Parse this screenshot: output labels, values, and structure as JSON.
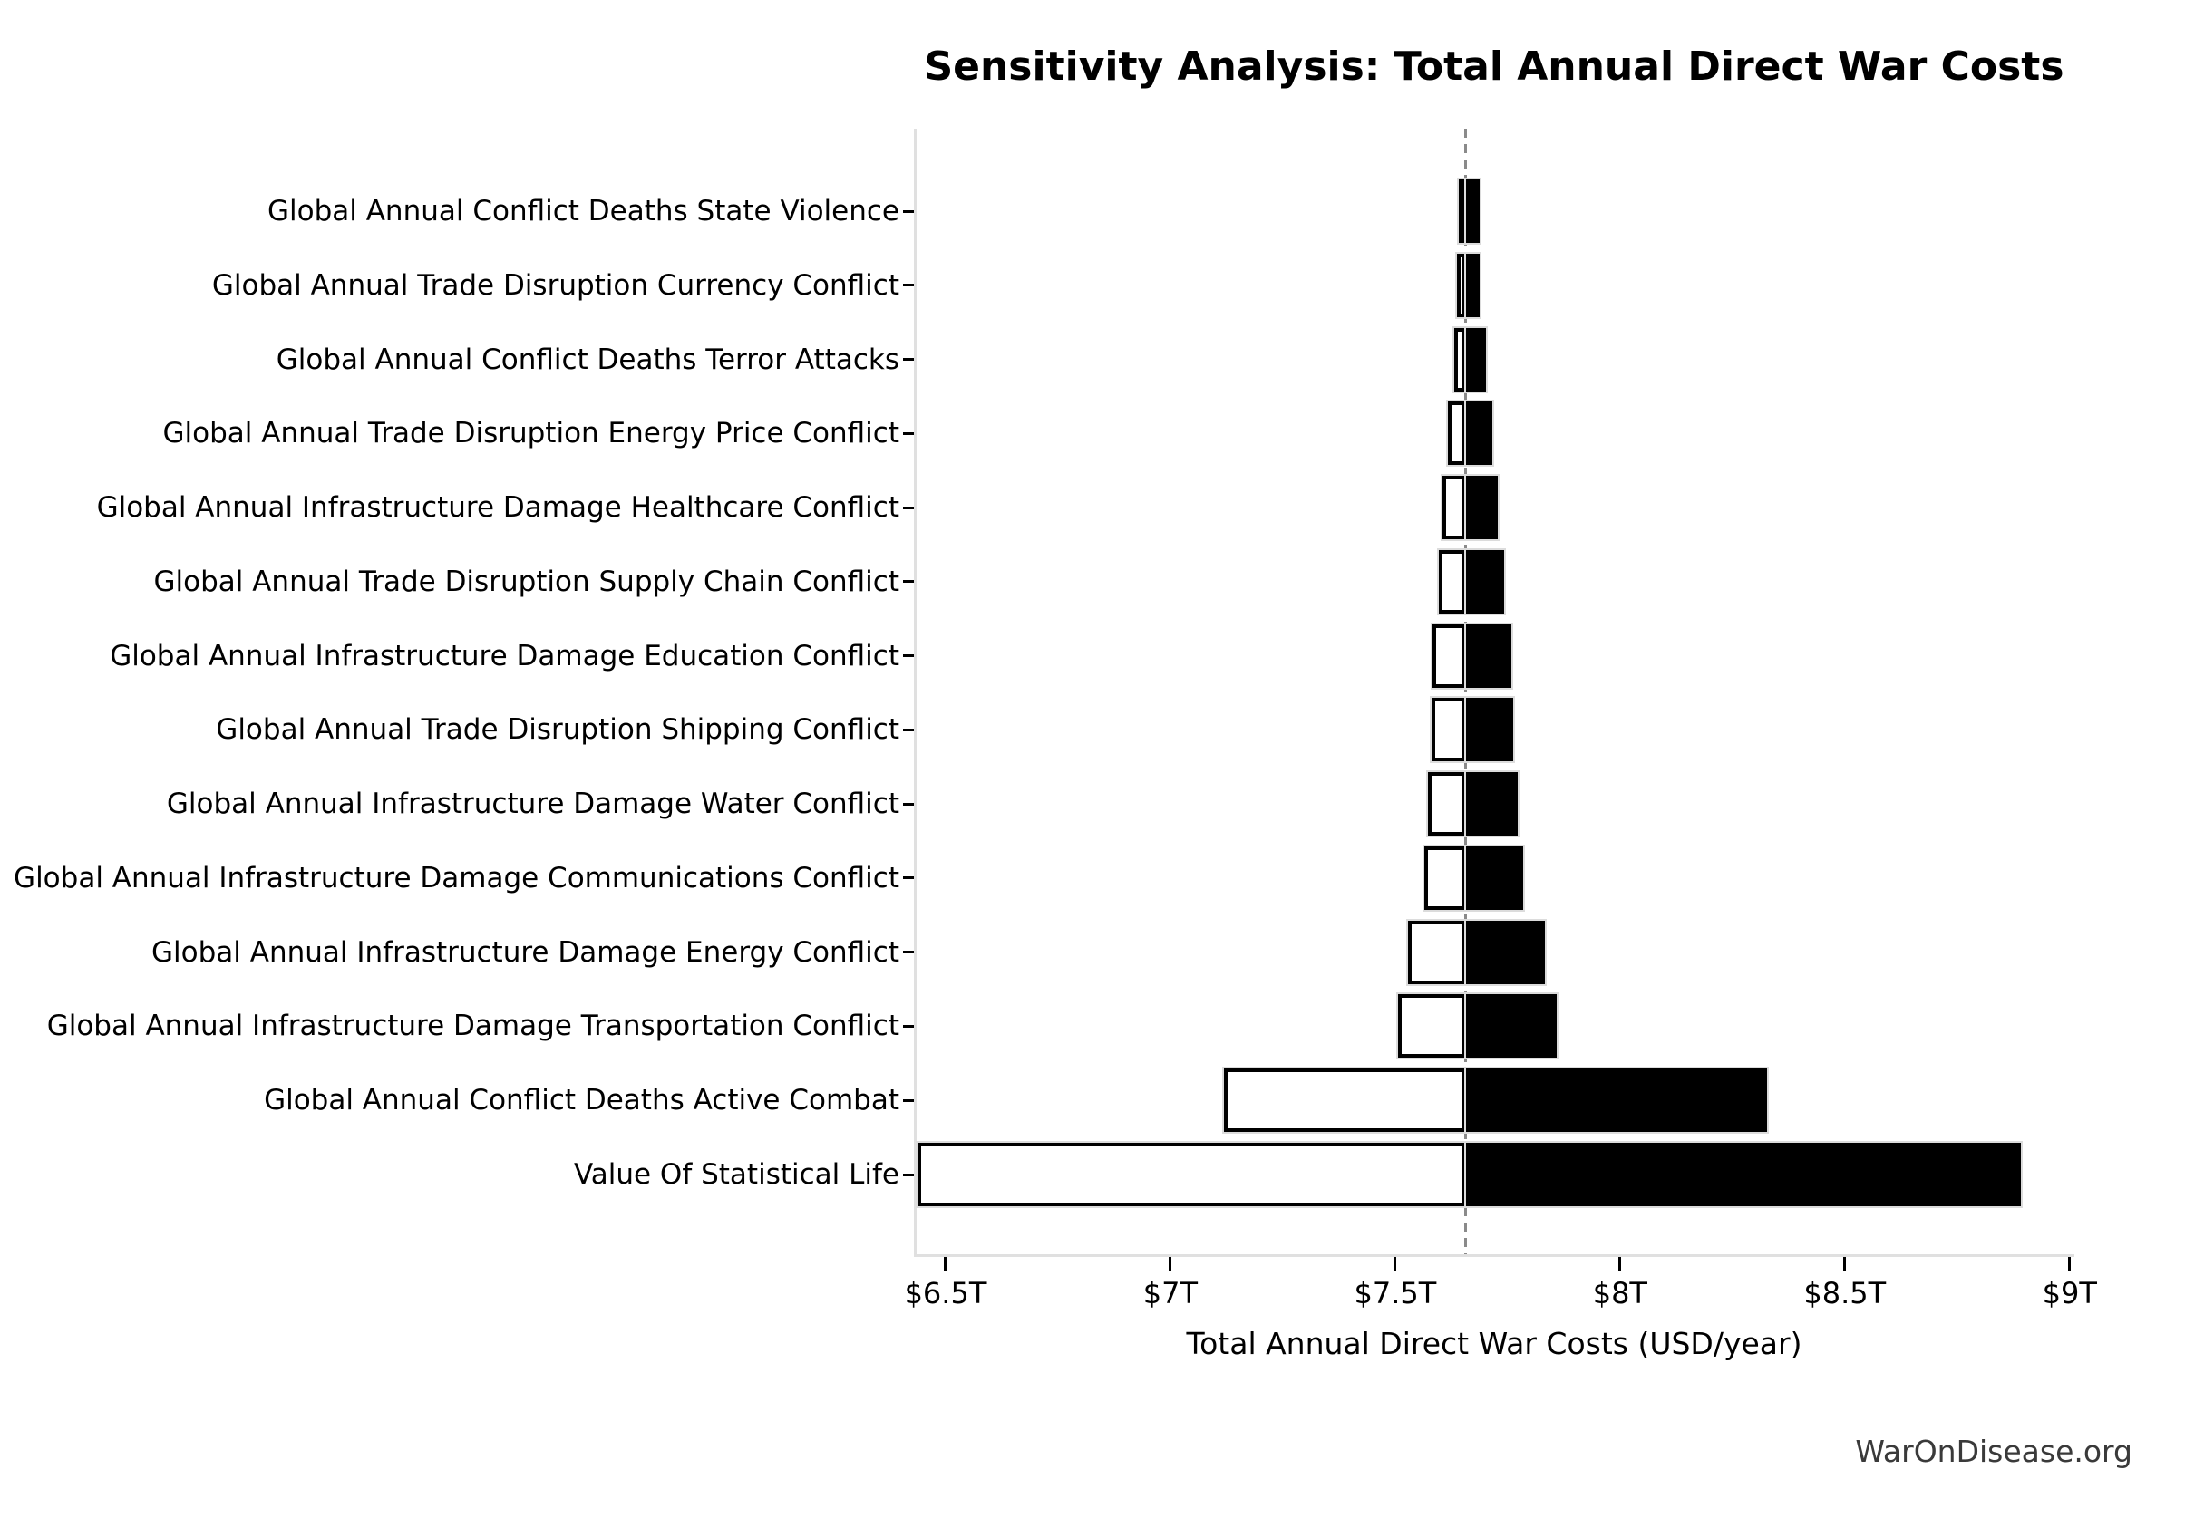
{
  "chart": {
    "title": "Sensitivity Analysis: Total Annual Direct War Costs",
    "xlabel": "Total Annual Direct War Costs (USD/year)",
    "watermark": "WarOnDisease.org"
  },
  "colors": {
    "background": "#ffffff",
    "bar_low_fill": "#ffffff",
    "bar_low_edge": "#000000",
    "bar_high_fill": "#000000",
    "baseline_line": "#8a8a8a",
    "spine": "#e0e0e0",
    "tick_mark": "#000000",
    "text": "#000000",
    "watermark_text": "#3a3a3a"
  },
  "chart_data": {
    "type": "bar",
    "subtype": "tornado-sensitivity",
    "orientation": "horizontal",
    "title": "Sensitivity Analysis: Total Annual Direct War Costs",
    "xlabel": "Total Annual Direct War Costs (USD/year)",
    "ylabel": "",
    "unit": "trillion USD per year",
    "grid": false,
    "legend": null,
    "baseline_value": 7.657,
    "baseline_line_style": "dashed-gray-vertical",
    "xlim": [
      6.4335,
      9.0065
    ],
    "x_ticks": [
      {
        "value": 6.5,
        "label": "$6.5T"
      },
      {
        "value": 7.0,
        "label": "$7T"
      },
      {
        "value": 7.5,
        "label": "$7.5T"
      },
      {
        "value": 8.0,
        "label": "$8T"
      },
      {
        "value": 8.5,
        "label": "$8.5T"
      },
      {
        "value": 9.0,
        "label": "$9T"
      }
    ],
    "categories": [
      "Global Annual Conflict Deaths State Violence",
      "Global Annual Trade Disruption Currency Conflict",
      "Global Annual Conflict Deaths Terror Attacks",
      "Global Annual Trade Disruption Energy Price Conflict",
      "Global Annual Infrastructure Damage Healthcare Conflict",
      "Global Annual Trade Disruption Supply Chain Conflict",
      "Global Annual Infrastructure Damage Education Conflict",
      "Global Annual Trade Disruption Shipping Conflict",
      "Global Annual Infrastructure Damage Water Conflict",
      "Global Annual Infrastructure Damage Communications Conflict",
      "Global Annual Infrastructure Damage Energy Conflict",
      "Global Annual Infrastructure Damage Transportation Conflict",
      "Global Annual Conflict Deaths Active Combat",
      "Value Of Statistical Life"
    ],
    "series": [
      {
        "name": "low",
        "fill": "#ffffff",
        "values": [
          7.641,
          7.637,
          7.631,
          7.617,
          7.605,
          7.597,
          7.583,
          7.58,
          7.572,
          7.565,
          7.528,
          7.506,
          7.12,
          6.437
        ]
      },
      {
        "name": "high",
        "fill": "#000000",
        "values": [
          7.688,
          7.687,
          7.702,
          7.716,
          7.729,
          7.742,
          7.758,
          7.762,
          7.772,
          7.784,
          7.832,
          7.859,
          8.327,
          8.892
        ]
      }
    ]
  }
}
